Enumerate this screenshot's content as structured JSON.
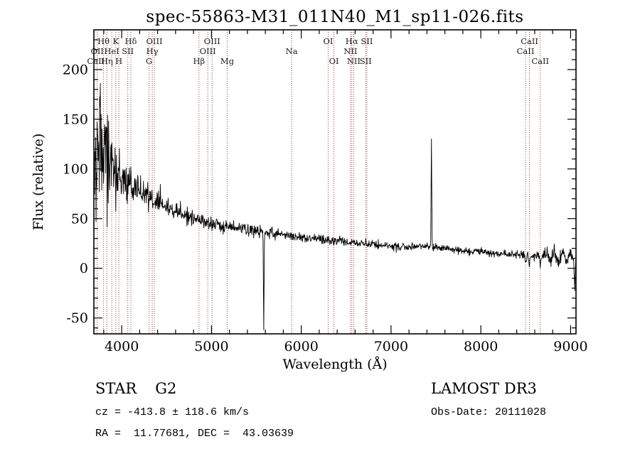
{
  "chart_data": {
    "type": "line",
    "title": "spec-55863-M31_011N40_M1_sp11-026.fits",
    "xlabel": "Wavelength (Å)",
    "ylabel": "Flux (relative)",
    "xlim": [
      3690,
      9060
    ],
    "ylim": [
      -66,
      240
    ],
    "xticks": [
      4000,
      5000,
      6000,
      7000,
      8000,
      9000
    ],
    "yticks": [
      -50,
      0,
      50,
      100,
      150,
      200
    ],
    "minor_x": 200,
    "minor_y": 10,
    "grid": false,
    "sample_step": 4,
    "trace_color": "#000000",
    "continuum": [
      [
        3690,
        115
      ],
      [
        3780,
        113
      ],
      [
        3900,
        100
      ],
      [
        4000,
        92
      ],
      [
        4100,
        84
      ],
      [
        4200,
        77
      ],
      [
        4300,
        72
      ],
      [
        4400,
        67
      ],
      [
        4500,
        62
      ],
      [
        4600,
        57
      ],
      [
        4700,
        53
      ],
      [
        4800,
        50
      ],
      [
        4900,
        47
      ],
      [
        5000,
        44
      ],
      [
        5200,
        42
      ],
      [
        5400,
        39
      ],
      [
        5600,
        37
      ],
      [
        5800,
        34
      ],
      [
        6000,
        31
      ],
      [
        6200,
        29
      ],
      [
        6400,
        27
      ],
      [
        6600,
        26
      ],
      [
        6800,
        24
      ],
      [
        7000,
        22
      ],
      [
        7200,
        21
      ],
      [
        7400,
        22
      ],
      [
        7600,
        20
      ],
      [
        7800,
        18
      ],
      [
        8000,
        16
      ],
      [
        8200,
        15
      ],
      [
        8400,
        14
      ],
      [
        8600,
        13
      ],
      [
        8800,
        12.5
      ],
      [
        9000,
        11
      ],
      [
        9060,
        10
      ]
    ],
    "noise": {
      "seed": 7,
      "ranges": [
        {
          "to": 3780,
          "sigma": 40
        },
        {
          "to": 3860,
          "sigma": 26
        },
        {
          "to": 3960,
          "sigma": 16
        },
        {
          "to": 4120,
          "sigma": 10
        },
        {
          "to": 4400,
          "sigma": 7
        },
        {
          "to": 4800,
          "sigma": 4.5
        },
        {
          "to": 5600,
          "sigma": 3.2
        },
        {
          "to": 6500,
          "sigma": 2.6
        },
        {
          "to": 7600,
          "sigma": 2.0
        },
        {
          "to": 8400,
          "sigma": 1.8
        },
        {
          "to": 8700,
          "sigma": 2.5
        },
        {
          "to": 9060,
          "sigma": 4.0
        }
      ],
      "wiggle": {
        "from": 8700,
        "amp": 4.5,
        "period": 95
      }
    },
    "features": [
      {
        "name": "emission-spike",
        "wl": 7450,
        "amp": 109,
        "sigma": 5
      },
      {
        "name": "artifact-dip",
        "wl": 5582,
        "amp": -100,
        "sigma": 5
      },
      {
        "name": "red-edge-dip",
        "wl": 9046,
        "amp": -27,
        "sigma": 7
      },
      {
        "name": "caii-8498-absorption",
        "wl": 8498,
        "amp": -8,
        "sigma": 8
      },
      {
        "name": "caii-8542-absorption",
        "wl": 8542,
        "amp": -9,
        "sigma": 8
      },
      {
        "name": "caii-8662-absorption",
        "wl": 8662,
        "amp": -9,
        "sigma": 8
      },
      {
        "name": "blue-spike",
        "wl": 4428,
        "amp": 16,
        "sigma": 5
      }
    ],
    "spectral_lines": {
      "color": "#9b4436",
      "wavelengths": [
        3727,
        3798,
        3835,
        3889,
        3934,
        3969,
        4068,
        4102,
        4305,
        4340,
        4363,
        4861,
        4959,
        5007,
        5175,
        5893,
        6300,
        6364,
        6548,
        6563,
        6584,
        6717,
        6731,
        8498,
        8542,
        8662
      ],
      "labels": [
        {
          "text": "Hθ",
          "wl": 3798,
          "row": 1
        },
        {
          "text": "K",
          "wl": 3934,
          "row": 1
        },
        {
          "text": "Hδ",
          "wl": 4102,
          "row": 1
        },
        {
          "text": "OIII",
          "wl": 4363,
          "row": 1
        },
        {
          "text": "OIII",
          "wl": 5007,
          "row": 1
        },
        {
          "text": "OI",
          "wl": 6300,
          "row": 1
        },
        {
          "text": "Hα",
          "wl": 6563,
          "row": 1
        },
        {
          "text": "SII",
          "wl": 6731,
          "row": 1
        },
        {
          "text": "CaII",
          "wl": 8542,
          "row": 1
        },
        {
          "text": "OII",
          "wl": 3727,
          "row": 2
        },
        {
          "text": "HeI",
          "wl": 3889,
          "row": 2
        },
        {
          "text": "SII",
          "wl": 4068,
          "row": 2
        },
        {
          "text": "Hγ",
          "wl": 4340,
          "row": 2
        },
        {
          "text": "OIII",
          "wl": 4959,
          "row": 2
        },
        {
          "text": "Na",
          "wl": 5893,
          "row": 2
        },
        {
          "text": "NII",
          "wl": 6548,
          "row": 2
        },
        {
          "text": "CaII",
          "wl": 8498,
          "row": 2
        },
        {
          "text": "CaII",
          "wl": 3712,
          "row": 3
        },
        {
          "text": "Hη",
          "wl": 3835,
          "row": 3
        },
        {
          "text": "H",
          "wl": 3969,
          "row": 3
        },
        {
          "text": "G",
          "wl": 4305,
          "row": 3
        },
        {
          "text": "Hβ",
          "wl": 4861,
          "row": 3
        },
        {
          "text": "Mg",
          "wl": 5175,
          "row": 3
        },
        {
          "text": "OI",
          "wl": 6364,
          "row": 3
        },
        {
          "text": "NII",
          "wl": 6584,
          "row": 3
        },
        {
          "text": "SII",
          "wl": 6717,
          "row": 3
        },
        {
          "text": "CaII",
          "wl": 8662,
          "row": 3
        }
      ]
    }
  },
  "footer": {
    "class": "STAR",
    "subclass": "G2",
    "cz": "cz = -413.8 ± 118.6 km/s",
    "ra_dec": "RA =  11.77681, DEC =  43.03639",
    "survey": "LAMOST DR3",
    "obs_date": "Obs-Date: 20111028"
  }
}
